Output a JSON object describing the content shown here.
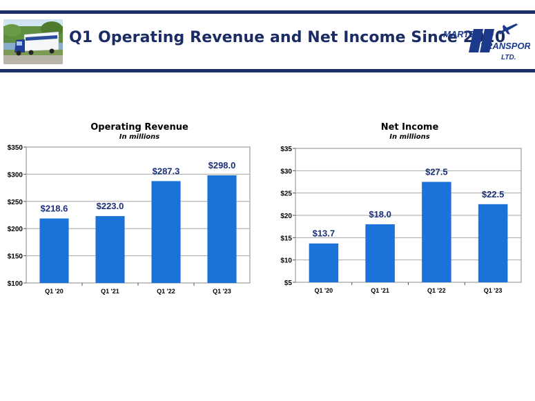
{
  "slide": {
    "title": "Q1 Operating Revenue and Net Income Since 2020",
    "logo": {
      "line1": "MARTEN",
      "line2": "TRANSPORT",
      "line3": "LTD.",
      "mark": "MT"
    },
    "colors": {
      "navy": "#1d2f6b",
      "bar": "#1b73d9",
      "bar_dark": "#0f4fa8",
      "label": "#1a2f7a"
    }
  },
  "chart_data": [
    {
      "type": "bar",
      "title": "Operating Revenue",
      "subtitle": "In millions",
      "categories": [
        "Q1 '20",
        "Q1 '21",
        "Q1 '22",
        "Q1 '23"
      ],
      "values": [
        218.6,
        223.0,
        287.3,
        298.0
      ],
      "labels": [
        "$218.6",
        "$223.0",
        "$287.3",
        "$298.0"
      ],
      "ylim": [
        100,
        350
      ],
      "yticks": [
        100,
        150,
        200,
        250,
        300,
        350
      ],
      "yticklabels": [
        "$100",
        "$150",
        "$200",
        "$250",
        "$300",
        "$350"
      ],
      "grid": true
    },
    {
      "type": "bar",
      "title": "Net Income",
      "subtitle": "In millions",
      "categories": [
        "Q1 '20",
        "Q1 '21",
        "Q1 '22",
        "Q1 '23"
      ],
      "values": [
        13.7,
        18.0,
        27.5,
        22.5
      ],
      "labels": [
        "$13.7",
        "$18.0",
        "$27.5",
        "$22.5"
      ],
      "ylim": [
        5,
        35
      ],
      "yticks": [
        5,
        10,
        15,
        20,
        25,
        30,
        35
      ],
      "yticklabels": [
        "$5",
        "$10",
        "$15",
        "$20",
        "$25",
        "$30",
        "$35"
      ],
      "grid": true
    }
  ]
}
